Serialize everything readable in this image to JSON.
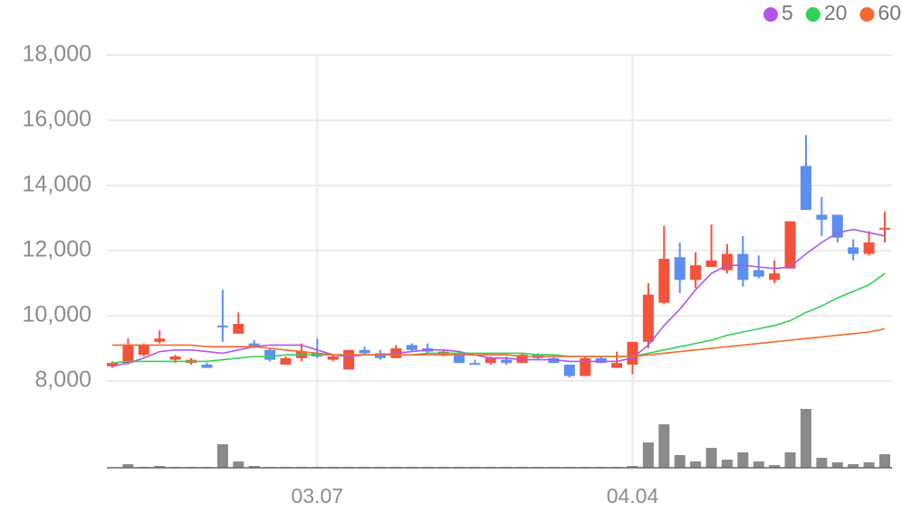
{
  "chart_data": {
    "type": "candlestick",
    "categories": [
      null,
      null,
      null,
      null,
      null,
      null,
      null,
      null,
      null,
      null,
      null,
      null,
      null,
      "03.07",
      null,
      null,
      null,
      null,
      null,
      null,
      null,
      null,
      null,
      null,
      null,
      null,
      null,
      null,
      null,
      null,
      null,
      null,
      null,
      "04.04",
      null,
      null,
      null,
      null,
      null,
      null,
      null,
      null,
      null,
      null,
      null,
      null,
      null,
      null,
      null,
      null
    ],
    "open": [
      8450,
      8550,
      8800,
      9200,
      8650,
      8550,
      8500,
      9700,
      9450,
      9150,
      8950,
      8500,
      8700,
      8850,
      8650,
      8350,
      8950,
      8850,
      8700,
      9100,
      9000,
      8800,
      8850,
      8550,
      8550,
      8650,
      8550,
      8800,
      8700,
      8500,
      8150,
      8700,
      8400,
      8500,
      9200,
      10400,
      11800,
      11100,
      11500,
      11400,
      11900,
      11400,
      11100,
      11450,
      14600,
      13100,
      13100,
      12100,
      11900,
      12650
    ],
    "high": [
      8600,
      9300,
      9150,
      9550,
      8800,
      8700,
      8550,
      10800,
      10100,
      9250,
      9000,
      8750,
      9150,
      9300,
      8800,
      8950,
      9050,
      8950,
      9100,
      9150,
      9150,
      8950,
      8900,
      8650,
      8750,
      8750,
      8850,
      8850,
      8750,
      8500,
      8750,
      8750,
      8900,
      9200,
      11000,
      12750,
      12250,
      11950,
      12800,
      12200,
      12450,
      11850,
      11700,
      12900,
      15550,
      13650,
      13100,
      12350,
      12600,
      13200
    ],
    "low": [
      8400,
      8500,
      8750,
      9150,
      8550,
      8500,
      8400,
      9200,
      9450,
      9000,
      8600,
      8500,
      8600,
      8700,
      8600,
      8350,
      8800,
      8650,
      8700,
      8900,
      8850,
      8750,
      8550,
      8500,
      8500,
      8500,
      8550,
      8650,
      8550,
      8100,
      8150,
      8550,
      8400,
      8200,
      9000,
      10350,
      10700,
      10850,
      11550,
      11300,
      10900,
      11150,
      11000,
      11450,
      13250,
      12450,
      12250,
      11700,
      11850,
      12250
    ],
    "close": [
      8550,
      9100,
      9100,
      9300,
      8750,
      8650,
      8400,
      9650,
      9750,
      9050,
      8650,
      8700,
      8900,
      8750,
      8750,
      8950,
      8850,
      8700,
      9000,
      8950,
      8900,
      8900,
      8550,
      8500,
      8700,
      8550,
      8800,
      8700,
      8550,
      8150,
      8700,
      8550,
      8550,
      9200,
      10650,
      11750,
      11100,
      11550,
      11700,
      11900,
      11100,
      11200,
      11300,
      12900,
      13250,
      12950,
      12400,
      11900,
      12250,
      12700
    ],
    "up_color": "#f4523a",
    "down_color": "#5b8ff0",
    "volume_color": "#8a8a8a",
    "volume": [
      0,
      4,
      1,
      2,
      1,
      1,
      1,
      26,
      7,
      2,
      1,
      1,
      1,
      1,
      1,
      1,
      1,
      1,
      1,
      1,
      1,
      1,
      1,
      1,
      1,
      1,
      1,
      1,
      1,
      1,
      1,
      1,
      1,
      2,
      28,
      48,
      14,
      7,
      22,
      9,
      17,
      7,
      3,
      17,
      65,
      11,
      6,
      4,
      6,
      15
    ],
    "series": [
      {
        "name": "5",
        "color": "#b455e8",
        "values": [
          8450,
          8550,
          8700,
          8900,
          8950,
          8950,
          8900,
          8850,
          8950,
          9050,
          9100,
          9100,
          9100,
          8950,
          8800,
          8750,
          8800,
          8800,
          8850,
          8900,
          8950,
          8950,
          8900,
          8800,
          8700,
          8700,
          8650,
          8650,
          8650,
          8600,
          8600,
          8600,
          8600,
          8700,
          9100,
          9700,
          10200,
          10800,
          11300,
          11550,
          11550,
          11500,
          11450,
          11500,
          11900,
          12250,
          12550,
          12650,
          12550,
          12450
        ]
      },
      {
        "name": "20",
        "color": "#2fd15a",
        "values": [
          8550,
          8600,
          8600,
          8600,
          8600,
          8600,
          8600,
          8650,
          8700,
          8750,
          8750,
          8800,
          8800,
          8800,
          8800,
          8800,
          8800,
          8800,
          8800,
          8800,
          8850,
          8850,
          8850,
          8850,
          8850,
          8850,
          8850,
          8800,
          8800,
          8750,
          8750,
          8750,
          8750,
          8750,
          8850,
          8950,
          9050,
          9150,
          9250,
          9400,
          9500,
          9600,
          9700,
          9850,
          10100,
          10300,
          10550,
          10750,
          10950,
          11300
        ]
      },
      {
        "name": "60",
        "color": "#f4692e",
        "values": [
          9100,
          9100,
          9100,
          9100,
          9100,
          9100,
          9050,
          9050,
          9050,
          9050,
          9000,
          8950,
          8900,
          8850,
          8800,
          8800,
          8800,
          8800,
          8800,
          8800,
          8800,
          8800,
          8800,
          8800,
          8800,
          8800,
          8750,
          8750,
          8750,
          8750,
          8750,
          8750,
          8750,
          8750,
          8800,
          8850,
          8900,
          8950,
          9000,
          9050,
          9100,
          9150,
          9200,
          9250,
          9300,
          9350,
          9400,
          9450,
          9500,
          9600
        ]
      }
    ],
    "ylim": [
      8000,
      18000
    ],
    "yticks": [
      {
        "value": 8000,
        "label": "8,000"
      },
      {
        "value": 10000,
        "label": "10,000"
      },
      {
        "value": 12000,
        "label": "12,000"
      },
      {
        "value": 14000,
        "label": "14,000"
      },
      {
        "value": 16000,
        "label": "16,000"
      },
      {
        "value": 18000,
        "label": "18,000"
      }
    ],
    "grid": true,
    "legend": "top-right"
  }
}
